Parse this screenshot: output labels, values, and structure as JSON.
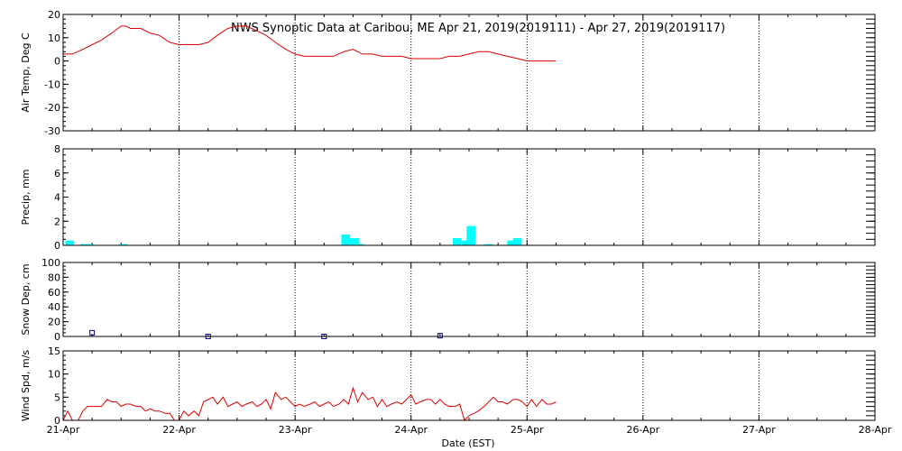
{
  "title": "NWS Synoptic Data at Caribou, ME   Apr 21, 2019(2019111) - Apr 27, 2019(2019117)",
  "xlabel": "Date (EST)",
  "x_ticks": [
    "21-Apr",
    "22-Apr",
    "23-Apr",
    "24-Apr",
    "25-Apr",
    "26-Apr",
    "27-Apr",
    "28-Apr"
  ],
  "colors": {
    "temp": "#dd0000",
    "precip": "#00ffff",
    "snow": "#000080",
    "wind": "#dd0000"
  },
  "chart_data": [
    {
      "type": "line",
      "ylabel": "Air Temp, Deg C",
      "xlim": [
        0,
        7
      ],
      "ylim": [
        -30,
        20
      ],
      "yticks": [
        -30,
        -20,
        -10,
        0,
        10,
        20
      ],
      "x_units": "days since 21-Apr 00:00 EST",
      "x": [
        0,
        0.08,
        0.17,
        0.25,
        0.33,
        0.42,
        0.5,
        0.54,
        0.58,
        0.67,
        0.75,
        0.83,
        0.92,
        1.0,
        1.08,
        1.17,
        1.25,
        1.33,
        1.42,
        1.5,
        1.58,
        1.67,
        1.75,
        1.83,
        1.92,
        2.0,
        2.08,
        2.17,
        2.25,
        2.33,
        2.42,
        2.5,
        2.58,
        2.67,
        2.75,
        2.83,
        2.92,
        3.0,
        3.08,
        3.17,
        3.25,
        3.33,
        3.42,
        3.5,
        3.58,
        3.67,
        3.75,
        3.83,
        3.92,
        4.0,
        4.08,
        4.17,
        4.25
      ],
      "values": [
        3,
        3,
        5,
        7,
        9,
        12,
        15,
        15,
        14,
        14,
        12,
        11,
        8,
        7,
        7,
        7,
        8,
        11,
        14,
        15,
        15,
        13,
        11,
        8,
        5,
        3,
        2,
        2,
        2,
        2,
        4,
        5,
        3,
        3,
        2,
        2,
        2,
        1,
        1,
        1,
        1,
        2,
        2,
        3,
        4,
        4,
        3,
        2,
        1,
        0,
        0,
        0,
        0
      ]
    },
    {
      "type": "bar",
      "ylabel": "Precip, mm",
      "xlim": [
        0,
        7
      ],
      "ylim": [
        0,
        8
      ],
      "yticks": [
        0,
        2,
        4,
        6,
        8
      ],
      "x": [
        0.04,
        0.17,
        0.21,
        0.5,
        2.42,
        2.46,
        2.5,
        2.54,
        3.38,
        3.46,
        3.5,
        3.65,
        3.85,
        3.9
      ],
      "values": [
        0.4,
        0.1,
        0.1,
        0.1,
        0.9,
        0.6,
        0.6,
        0.1,
        0.6,
        0.4,
        1.6,
        0.1,
        0.4,
        0.6
      ]
    },
    {
      "type": "scatter",
      "ylabel": "Snow Dep, cm",
      "xlim": [
        0,
        7
      ],
      "ylim": [
        0,
        100
      ],
      "yticks": [
        0,
        20,
        40,
        60,
        80,
        100
      ],
      "x": [
        0.25,
        1.25,
        2.25,
        3.25
      ],
      "values": [
        5,
        0,
        0,
        1
      ]
    },
    {
      "type": "line",
      "ylabel": "Wind Spd, m/s",
      "xlim": [
        0,
        7
      ],
      "ylim": [
        0,
        15
      ],
      "yticks": [
        0,
        5,
        10,
        15
      ],
      "x": [
        0,
        0.04,
        0.08,
        0.13,
        0.17,
        0.21,
        0.25,
        0.29,
        0.33,
        0.38,
        0.42,
        0.46,
        0.5,
        0.54,
        0.58,
        0.63,
        0.67,
        0.71,
        0.75,
        0.79,
        0.83,
        0.88,
        0.92,
        0.96,
        1.0,
        1.04,
        1.08,
        1.13,
        1.17,
        1.21,
        1.25,
        1.29,
        1.33,
        1.38,
        1.42,
        1.46,
        1.5,
        1.54,
        1.58,
        1.63,
        1.67,
        1.71,
        1.75,
        1.79,
        1.83,
        1.88,
        1.92,
        1.96,
        2.0,
        2.04,
        2.08,
        2.13,
        2.17,
        2.21,
        2.25,
        2.29,
        2.33,
        2.38,
        2.42,
        2.46,
        2.5,
        2.54,
        2.58,
        2.63,
        2.67,
        2.71,
        2.75,
        2.79,
        2.83,
        2.88,
        2.92,
        2.96,
        3.0,
        3.04,
        3.08,
        3.13,
        3.17,
        3.21,
        3.25,
        3.29,
        3.33,
        3.38,
        3.42,
        3.46,
        3.5,
        3.54,
        3.58,
        3.63,
        3.67,
        3.71,
        3.75,
        3.79,
        3.83,
        3.88,
        3.92,
        3.96,
        4.0,
        4.04,
        4.08,
        4.13,
        4.17,
        4.21,
        4.25
      ],
      "values": [
        0,
        2,
        0,
        0,
        2,
        3,
        3,
        3,
        3,
        4.5,
        4,
        4,
        3,
        3.5,
        3.5,
        3,
        3,
        2,
        2.5,
        2,
        2,
        1.5,
        1.5,
        0,
        0,
        2,
        1,
        2,
        1,
        4,
        4.5,
        5,
        3.5,
        5,
        3,
        3.5,
        4,
        3,
        3.5,
        4,
        3,
        3.5,
        4.5,
        2.5,
        6,
        4.5,
        5,
        4,
        3,
        3.5,
        3,
        3.5,
        4,
        3,
        3.5,
        4,
        3,
        3.5,
        4.5,
        3.5,
        7,
        4,
        6,
        4.5,
        5,
        3,
        4.5,
        3,
        3.5,
        4,
        3.5,
        4.5,
        5.5,
        3.5,
        4,
        4.5,
        4.5,
        3.5,
        4.5,
        3.5,
        3,
        3,
        3.5,
        0,
        1,
        1.5,
        2,
        3,
        4,
        5,
        4,
        4,
        3.5,
        4.5,
        4.5,
        4,
        3,
        4.5,
        3,
        4.5,
        3.5,
        3.5,
        4
      ]
    }
  ]
}
